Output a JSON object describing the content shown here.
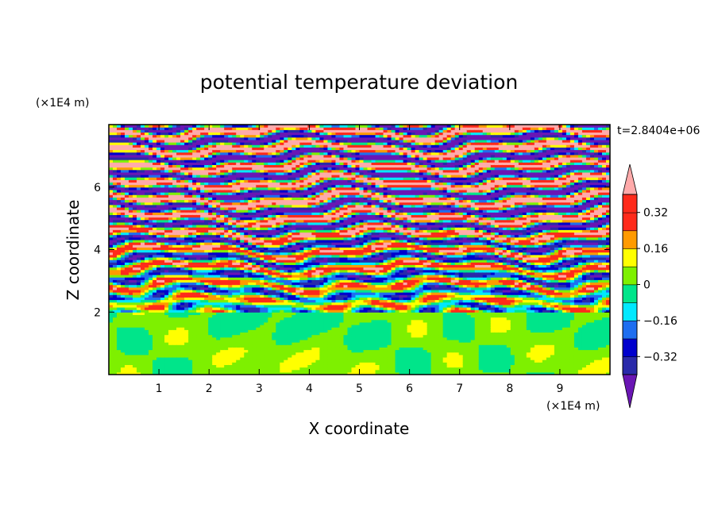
{
  "chart_data": {
    "type": "heatmap",
    "title": "potential temperature deviation",
    "xlabel": "X coordinate",
    "ylabel": "Z coordinate",
    "x_unit": "(×1E4 m)",
    "y_unit": "(×1E4 m)",
    "time_label": "t=2.8404e+06",
    "xlim": [
      0,
      10
    ],
    "ylim": [
      0,
      8
    ],
    "x_ticks": [
      1,
      2,
      3,
      4,
      5,
      6,
      7,
      8,
      9
    ],
    "x_tick_labels": [
      "1",
      "2",
      "3",
      "4",
      "5",
      "6",
      "7",
      "8",
      "9"
    ],
    "y_ticks": [
      2,
      4,
      6
    ],
    "y_tick_labels": [
      "2",
      "4",
      "6"
    ],
    "grid": false,
    "colorbar": {
      "levels": [
        -0.4,
        -0.32,
        -0.24,
        -0.16,
        -0.08,
        0,
        0.08,
        0.16,
        0.24,
        0.32,
        0.4
      ],
      "colors": [
        "#6a16b4",
        "#2a2aaa",
        "#0000cd",
        "#1e6ef0",
        "#00e8ff",
        "#00e58a",
        "#7ef000",
        "#ffff00",
        "#ff9a00",
        "#ff2a1a",
        "#ff2a1a",
        "#ffaaaa"
      ],
      "tick_values": [
        -0.32,
        -0.16,
        0,
        0.16,
        0.32
      ],
      "tick_labels": [
        "−0.32",
        "−0.16",
        "0",
        "0.16",
        "0.32"
      ],
      "extend": "both"
    },
    "layers": {
      "lower_band": {
        "z_range": [
          0,
          2.0
        ],
        "dominant_values": [
          0.0,
          0.06
        ]
      },
      "upper_band": {
        "z_range": [
          2.0,
          8.0
        ],
        "bands_alternate_between": [
          -0.4,
          0.4
        ]
      }
    }
  }
}
